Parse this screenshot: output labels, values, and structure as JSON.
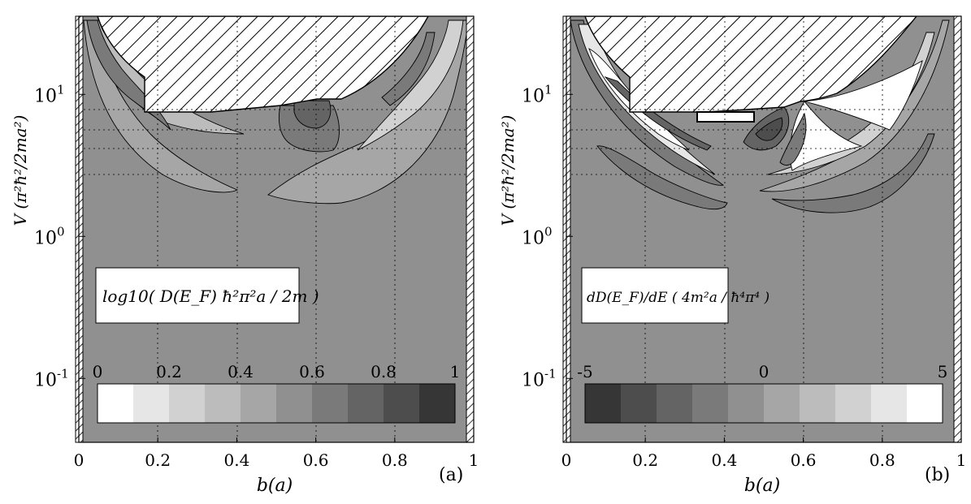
{
  "chart_data": [
    {
      "type": "heatmap",
      "panel_label": "(a)",
      "xlabel": "b(a)",
      "ylabel": "V (π²ħ²/2ma²)",
      "xlim": [
        0,
        1
      ],
      "ylim_log10": [
        -1.45,
        1.55
      ],
      "scale": "log-y",
      "xticks": [
        {
          "value": 0,
          "label": "0"
        },
        {
          "value": 0.2,
          "label": "0.2"
        },
        {
          "value": 0.4,
          "label": "0.4"
        },
        {
          "value": 0.6,
          "label": "0.6"
        },
        {
          "value": 0.8,
          "label": "0.8"
        },
        {
          "value": 1,
          "label": "1"
        }
      ],
      "yticks": [
        {
          "exp": 1,
          "base": "10",
          "sup": "1"
        },
        {
          "exp": 0,
          "base": "10",
          "sup": "0"
        },
        {
          "exp": -1,
          "base": "10",
          "sup": "-1"
        }
      ],
      "legend_box": "log10( D(E_F) ħ²π²a / 2m )",
      "colorbar": {
        "min": 0,
        "max": 1,
        "steps": 10,
        "tick_labels": [
          {
            "value": 0,
            "label": "0"
          },
          {
            "value": 0.2,
            "label": "0.2"
          },
          {
            "value": 0.4,
            "label": "0.4"
          },
          {
            "value": 0.6,
            "label": "0.6"
          },
          {
            "value": 0.8,
            "label": "0.8"
          },
          {
            "value": 1,
            "label": "1"
          }
        ],
        "colors": [
          "#ffffff",
          "#e6e6e6",
          "#d1d1d1",
          "#bcbcbc",
          "#a6a6a6",
          "#909090",
          "#7a7a7a",
          "#646464",
          "#4d4d4d",
          "#363636"
        ]
      },
      "background_level_color": "#909090",
      "grid": true
    },
    {
      "type": "heatmap",
      "panel_label": "(b)",
      "xlabel": "b(a)",
      "ylabel": "V (π²ħ²/2ma²)",
      "xlim": [
        0,
        1
      ],
      "ylim_log10": [
        -1.45,
        1.55
      ],
      "scale": "log-y",
      "xticks": [
        {
          "value": 0,
          "label": "0"
        },
        {
          "value": 0.2,
          "label": "0.2"
        },
        {
          "value": 0.4,
          "label": "0.4"
        },
        {
          "value": 0.6,
          "label": "0.6"
        },
        {
          "value": 0.8,
          "label": "0.8"
        },
        {
          "value": 1,
          "label": "1"
        }
      ],
      "yticks": [
        {
          "exp": 1,
          "base": "10",
          "sup": "1"
        },
        {
          "exp": 0,
          "base": "10",
          "sup": "0"
        },
        {
          "exp": -1,
          "base": "10",
          "sup": "-1"
        }
      ],
      "legend_box": "dD(E_F)/dE ( 4m²a / ħ⁴π⁴ )",
      "colorbar": {
        "min": -5,
        "max": 5,
        "steps": 10,
        "tick_labels": [
          {
            "value": -5,
            "label": "-5"
          },
          {
            "value": 0,
            "label": "0"
          },
          {
            "value": 5,
            "label": "5"
          }
        ],
        "colors": [
          "#363636",
          "#4d4d4d",
          "#646464",
          "#7a7a7a",
          "#909090",
          "#a6a6a6",
          "#bcbcbc",
          "#d1d1d1",
          "#e6e6e6",
          "#ffffff"
        ]
      },
      "background_level_color": "#909090",
      "grid": true
    }
  ]
}
